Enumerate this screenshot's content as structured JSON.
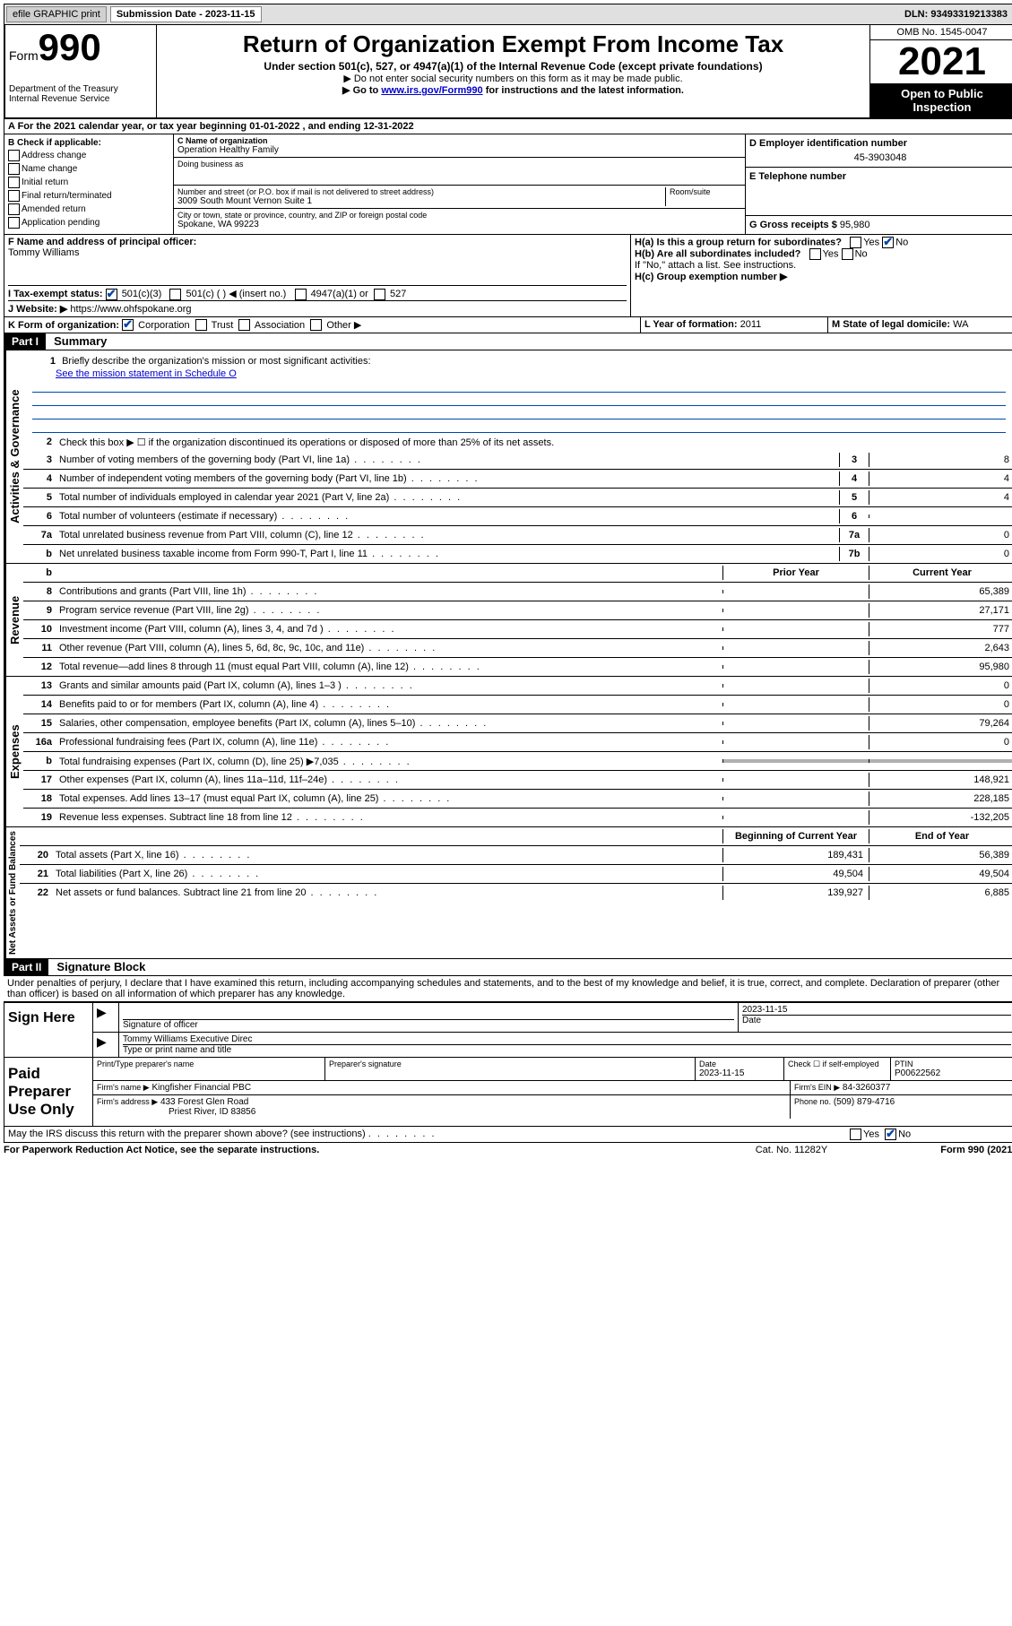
{
  "topbar": {
    "efile": "efile GRAPHIC print",
    "submission_label": "Submission Date - 2023-11-15",
    "dln": "DLN: 93493319213383"
  },
  "header": {
    "form_prefix": "Form",
    "form_number": "990",
    "dept": "Department of the Treasury",
    "irs": "Internal Revenue Service",
    "title": "Return of Organization Exempt From Income Tax",
    "subtitle": "Under section 501(c), 527, or 4947(a)(1) of the Internal Revenue Code (except private foundations)",
    "note1": "▶ Do not enter social security numbers on this form as it may be made public.",
    "note2_pre": "▶ Go to ",
    "note2_link": "www.irs.gov/Form990",
    "note2_post": " for instructions and the latest information.",
    "omb": "OMB No. 1545-0047",
    "year": "2021",
    "open": "Open to Public Inspection"
  },
  "a_line": {
    "prefix": "A For the 2021 calendar year, or tax year beginning ",
    "begin": "01-01-2022",
    "mid": " , and ending ",
    "end": "12-31-2022"
  },
  "section_b": {
    "label": "B Check if applicable:",
    "items": [
      "Address change",
      "Name change",
      "Initial return",
      "Final return/terminated",
      "Amended return",
      "Application pending"
    ]
  },
  "section_c": {
    "name_label": "C Name of organization",
    "name": "Operation Healthy Family",
    "dba_label": "Doing business as",
    "street_label": "Number and street (or P.O. box if mail is not delivered to street address)",
    "room_label": "Room/suite",
    "street": "3009 South Mount Vernon Suite 1",
    "city_label": "City or town, state or province, country, and ZIP or foreign postal code",
    "city": "Spokane, WA  99223"
  },
  "section_d": {
    "label": "D Employer identification number",
    "ein": "45-3903048"
  },
  "section_e": {
    "label": "E Telephone number"
  },
  "section_g": {
    "label": "G Gross receipts $",
    "value": "95,980"
  },
  "section_f": {
    "label": "F  Name and address of principal officer:",
    "name": "Tommy Williams"
  },
  "section_h": {
    "ha": "H(a)  Is this a group return for subordinates?",
    "hb": "H(b)  Are all subordinates included?",
    "hb_note": "If \"No,\" attach a list. See instructions.",
    "hc": "H(c)  Group exemption number ▶",
    "yes": "Yes",
    "no": "No"
  },
  "section_i": {
    "label": "I     Tax-exempt status:",
    "c501c3": "501(c)(3)",
    "c501c": "501(c) (  )",
    "insert": "◀ (insert no.)",
    "c4947": "4947(a)(1) or",
    "c527": "527"
  },
  "section_j": {
    "label": "J    Website: ▶",
    "url": "https://www.ohfspokane.org"
  },
  "section_k": {
    "label": "K Form of organization:",
    "corp": "Corporation",
    "trust": "Trust",
    "assoc": "Association",
    "other": "Other ▶"
  },
  "section_l": {
    "label": "L Year of formation:",
    "value": "2011"
  },
  "section_m": {
    "label": "M State of legal domicile:",
    "value": "WA"
  },
  "part1": {
    "header": "Part I",
    "title": "Summary",
    "line1_label": "Briefly describe the organization's mission or most significant activities:",
    "line1_link": "See the mission statement in Schedule O",
    "line2": "Check this box ▶ ☐  if the organization discontinued its operations or disposed of more than 25% of its net assets.",
    "lines_gov": [
      {
        "n": "3",
        "t": "Number of voting members of the governing body (Part VI, line 1a)",
        "box": "3",
        "v": "8"
      },
      {
        "n": "4",
        "t": "Number of independent voting members of the governing body (Part VI, line 1b)",
        "box": "4",
        "v": "4"
      },
      {
        "n": "5",
        "t": "Total number of individuals employed in calendar year 2021 (Part V, line 2a)",
        "box": "5",
        "v": "4"
      },
      {
        "n": "6",
        "t": "Total number of volunteers (estimate if necessary)",
        "box": "6",
        "v": ""
      },
      {
        "n": "7a",
        "t": "Total unrelated business revenue from Part VIII, column (C), line 12",
        "box": "7a",
        "v": "0"
      },
      {
        "n": "b",
        "t": "Net unrelated business taxable income from Form 990-T, Part I, line 11",
        "box": "7b",
        "v": "0"
      }
    ],
    "col_prior": "Prior Year",
    "col_current": "Current Year",
    "lines_rev": [
      {
        "n": "8",
        "t": "Contributions and grants (Part VIII, line 1h)",
        "p": "",
        "c": "65,389"
      },
      {
        "n": "9",
        "t": "Program service revenue (Part VIII, line 2g)",
        "p": "",
        "c": "27,171"
      },
      {
        "n": "10",
        "t": "Investment income (Part VIII, column (A), lines 3, 4, and 7d )",
        "p": "",
        "c": "777"
      },
      {
        "n": "11",
        "t": "Other revenue (Part VIII, column (A), lines 5, 6d, 8c, 9c, 10c, and 11e)",
        "p": "",
        "c": "2,643"
      },
      {
        "n": "12",
        "t": "Total revenue—add lines 8 through 11 (must equal Part VIII, column (A), line 12)",
        "p": "",
        "c": "95,980"
      }
    ],
    "lines_exp": [
      {
        "n": "13",
        "t": "Grants and similar amounts paid (Part IX, column (A), lines 1–3 )",
        "p": "",
        "c": "0"
      },
      {
        "n": "14",
        "t": "Benefits paid to or for members (Part IX, column (A), line 4)",
        "p": "",
        "c": "0"
      },
      {
        "n": "15",
        "t": "Salaries, other compensation, employee benefits (Part IX, column (A), lines 5–10)",
        "p": "",
        "c": "79,264"
      },
      {
        "n": "16a",
        "t": "Professional fundraising fees (Part IX, column (A), line 11e)",
        "p": "",
        "c": "0"
      },
      {
        "n": "b",
        "t": "Total fundraising expenses (Part IX, column (D), line 25) ▶7,035",
        "p": "shade",
        "c": "shade"
      },
      {
        "n": "17",
        "t": "Other expenses (Part IX, column (A), lines 11a–11d, 11f–24e)",
        "p": "",
        "c": "148,921"
      },
      {
        "n": "18",
        "t": "Total expenses. Add lines 13–17 (must equal Part IX, column (A), line 25)",
        "p": "",
        "c": "228,185"
      },
      {
        "n": "19",
        "t": "Revenue less expenses. Subtract line 18 from line 12",
        "p": "",
        "c": "-132,205"
      }
    ],
    "col_begin": "Beginning of Current Year",
    "col_end": "End of Year",
    "lines_net": [
      {
        "n": "20",
        "t": "Total assets (Part X, line 16)",
        "p": "189,431",
        "c": "56,389"
      },
      {
        "n": "21",
        "t": "Total liabilities (Part X, line 26)",
        "p": "49,504",
        "c": "49,504"
      },
      {
        "n": "22",
        "t": "Net assets or fund balances. Subtract line 21 from line 20",
        "p": "139,927",
        "c": "6,885"
      }
    ],
    "vert_gov": "Activities & Governance",
    "vert_rev": "Revenue",
    "vert_exp": "Expenses",
    "vert_net": "Net Assets or Fund Balances"
  },
  "part2": {
    "header": "Part II",
    "title": "Signature Block",
    "declaration": "Under penalties of perjury, I declare that I have examined this return, including accompanying schedules and statements, and to the best of my knowledge and belief, it is true, correct, and complete. Declaration of preparer (other than officer) is based on all information of which preparer has any knowledge."
  },
  "sign": {
    "label": "Sign Here",
    "sig_officer": "Signature of officer",
    "date": "Date",
    "date_val": "2023-11-15",
    "name": "Tommy Williams  Executive Direc",
    "name_label": "Type or print name and title"
  },
  "paid": {
    "label": "Paid Preparer Use Only",
    "print_label": "Print/Type preparer's name",
    "sig_label": "Preparer's signature",
    "date_label": "Date",
    "date_val": "2023-11-15",
    "check_label": "Check ☐ if self-employed",
    "ptin_label": "PTIN",
    "ptin": "P00622562",
    "firm_name_label": "Firm's name    ▶",
    "firm_name": "Kingfisher Financial PBC",
    "firm_ein_label": "Firm's EIN ▶",
    "firm_ein": "84-3260377",
    "firm_addr_label": "Firm's address ▶",
    "firm_addr1": "433 Forest Glen Road",
    "firm_addr2": "Priest River, ID  83856",
    "phone_label": "Phone no.",
    "phone": "(509) 879-4716"
  },
  "footer": {
    "discuss": "May the IRS discuss this return with the preparer shown above? (see instructions)",
    "yes": "Yes",
    "no": "No",
    "paperwork": "For Paperwork Reduction Act Notice, see the separate instructions.",
    "cat": "Cat. No. 11282Y",
    "form": "Form 990 (2021)"
  }
}
